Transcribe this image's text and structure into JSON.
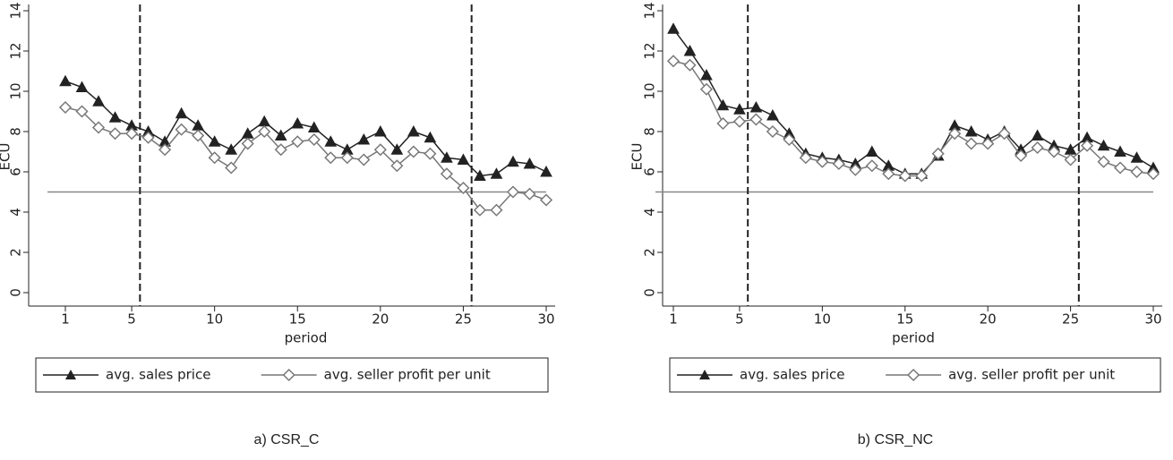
{
  "chart_data": [
    {
      "type": "line",
      "caption": "a) CSR_C",
      "x_label": "period",
      "y_label": "ECU",
      "x": [
        1,
        2,
        3,
        4,
        5,
        6,
        7,
        8,
        9,
        10,
        11,
        12,
        13,
        14,
        15,
        16,
        17,
        18,
        19,
        20,
        21,
        22,
        23,
        24,
        25,
        26,
        27,
        28,
        29,
        30
      ],
      "series": [
        {
          "name": "avg. sales price",
          "color": "#222222",
          "marker": "triangle",
          "values": [
            10.5,
            10.2,
            9.5,
            8.7,
            8.3,
            8.0,
            7.5,
            8.9,
            8.3,
            7.5,
            7.1,
            7.9,
            8.5,
            7.8,
            8.4,
            8.2,
            7.5,
            7.1,
            7.6,
            8.0,
            7.1,
            8.0,
            7.7,
            6.7,
            6.6,
            5.8,
            5.9,
            6.5,
            6.4,
            6.0
          ]
        },
        {
          "name": "avg. seller profit per unit",
          "color": "#777777",
          "marker": "diamond",
          "values": [
            9.2,
            9.0,
            8.2,
            7.9,
            7.9,
            7.7,
            7.1,
            8.1,
            7.8,
            6.7,
            6.2,
            7.4,
            8.0,
            7.1,
            7.5,
            7.6,
            6.7,
            6.7,
            6.6,
            7.1,
            6.3,
            7.0,
            6.9,
            5.9,
            5.2,
            4.1,
            4.1,
            5.0,
            4.9,
            4.6
          ]
        }
      ],
      "xlim": [
        1,
        30
      ],
      "ylim": [
        0,
        14
      ],
      "xticks": [
        1,
        5,
        10,
        15,
        20,
        25,
        30
      ],
      "yticks": [
        0,
        2,
        4,
        6,
        8,
        10,
        12,
        14
      ],
      "hline": 5,
      "vlines": [
        5.5,
        25.5
      ]
    },
    {
      "type": "line",
      "caption": "b) CSR_NC",
      "x_label": "period",
      "y_label": "ECU",
      "x": [
        1,
        2,
        3,
        4,
        5,
        6,
        7,
        8,
        9,
        10,
        11,
        12,
        13,
        14,
        15,
        16,
        17,
        18,
        19,
        20,
        21,
        22,
        23,
        24,
        25,
        26,
        27,
        28,
        29,
        30
      ],
      "series": [
        {
          "name": "avg. sales price",
          "color": "#222222",
          "marker": "triangle",
          "values": [
            13.1,
            12.0,
            10.8,
            9.3,
            9.1,
            9.2,
            8.8,
            7.9,
            6.9,
            6.7,
            6.6,
            6.4,
            7.0,
            6.3,
            5.9,
            5.9,
            6.8,
            8.3,
            8.0,
            7.6,
            8.0,
            7.1,
            7.8,
            7.3,
            7.1,
            7.7,
            7.3,
            7.0,
            6.7,
            6.2
          ]
        },
        {
          "name": "avg. seller profit per unit",
          "color": "#777777",
          "marker": "diamond",
          "values": [
            11.5,
            11.3,
            10.1,
            8.4,
            8.5,
            8.6,
            8.0,
            7.6,
            6.7,
            6.5,
            6.4,
            6.1,
            6.3,
            5.9,
            5.8,
            5.8,
            6.9,
            7.9,
            7.4,
            7.4,
            7.9,
            6.8,
            7.2,
            7.0,
            6.6,
            7.3,
            6.5,
            6.2,
            6.0,
            5.9
          ]
        }
      ],
      "xlim": [
        1,
        30
      ],
      "ylim": [
        0,
        14
      ],
      "xticks": [
        1,
        5,
        10,
        15,
        20,
        25,
        30
      ],
      "yticks": [
        0,
        2,
        4,
        6,
        8,
        10,
        12,
        14
      ],
      "hline": 5,
      "vlines": [
        5.5,
        25.5
      ]
    }
  ]
}
